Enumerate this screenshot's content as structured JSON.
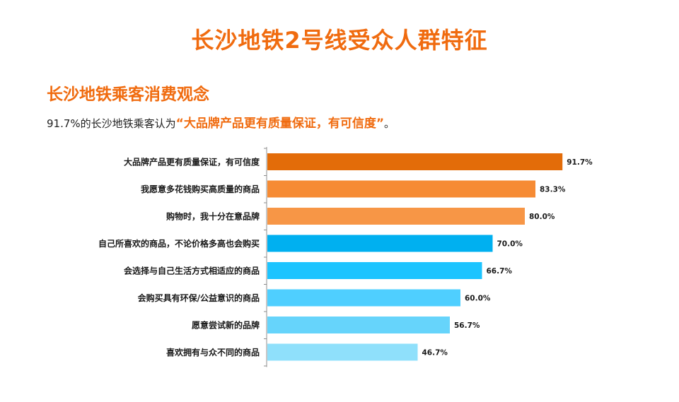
{
  "header": {
    "title": "长沙地铁2号线受众人群特征"
  },
  "section": {
    "title": "长沙地铁乘客消费观念",
    "subtitle_prefix": "91.7%的长沙地铁乘客认为",
    "subtitle_highlight": "“大品牌产品更有质量保证，有可信度”",
    "subtitle_suffix": "。"
  },
  "chart_data": {
    "type": "bar",
    "orientation": "horizontal",
    "categories": [
      "大品牌产品更有质量保证，有可信度",
      "我愿意多花钱购买高质量的商品",
      "购物时，我十分在意品牌",
      "自己所喜欢的商品，不论价格多高也会购买",
      "会选择与自己生活方式相适应的商品",
      "会购买具有环保/公益意识的商品",
      "愿意尝试新的品牌",
      "喜欢拥有与众不同的商品"
    ],
    "values": [
      91.7,
      83.3,
      80.0,
      70.0,
      66.7,
      60.0,
      56.7,
      46.7
    ],
    "data_labels": [
      "91.7%",
      "83.3%",
      "80.0%",
      "70.0%",
      "66.7%",
      "60.0%",
      "56.7%",
      "46.7%"
    ],
    "bar_colors": [
      "#e36c09",
      "#f68b34",
      "#f79646",
      "#00b0f0",
      "#1cc4ff",
      "#4fcfff",
      "#66d4fb",
      "#8fe0fb"
    ],
    "xlim": [
      0,
      100
    ],
    "grid": false,
    "legend": "none"
  }
}
